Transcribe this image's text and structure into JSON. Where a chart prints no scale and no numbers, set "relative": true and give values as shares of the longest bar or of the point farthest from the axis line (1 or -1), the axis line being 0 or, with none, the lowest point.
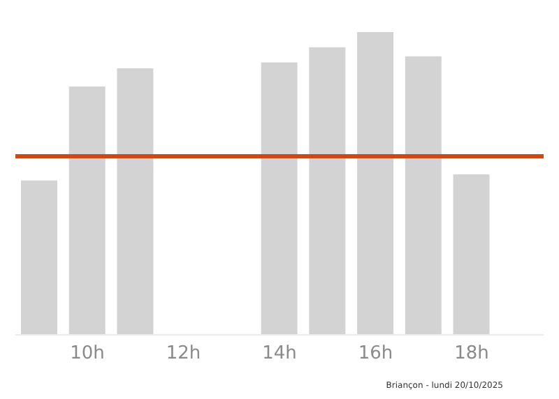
{
  "chart_data": {
    "type": "bar",
    "relative": true,
    "categories": [
      null,
      "10h",
      null,
      "12h",
      null,
      "14h",
      null,
      "16h",
      null,
      "18h",
      null
    ],
    "values": [
      0.51,
      0.82,
      0.88,
      0,
      0,
      0.9,
      0.95,
      1,
      0.92,
      0.53,
      0
    ],
    "color": "#d3d3d3",
    "ref_lines": [
      {
        "axis": "y",
        "value": 0.59,
        "color": "#cc4a12"
      }
    ],
    "annotations": [
      "Briançon - lundi 20/10/2025"
    ],
    "grid": false,
    "legend": false
  }
}
